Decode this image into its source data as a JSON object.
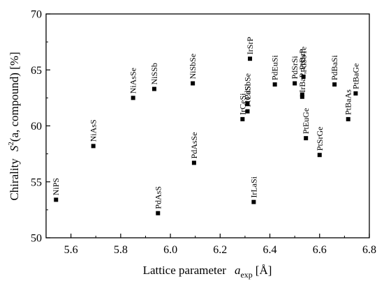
{
  "chart_data": {
    "type": "scatter",
    "title": "",
    "xlabel": {
      "prefix": "Lattice parameter",
      "symbol": "a",
      "subscript": "exp",
      "unit": "[Å]"
    },
    "ylabel": {
      "prefix": "Chirality",
      "symbol": "S",
      "superscript": "2",
      "args": "(a, compound) [%]"
    },
    "xlim": [
      5.5,
      6.8
    ],
    "ylim": [
      50,
      70
    ],
    "xticks": [
      "5.6",
      "5.8",
      "6.0",
      "6.2",
      "6.4",
      "6.6",
      "6.8"
    ],
    "yticks": [
      "50",
      "55",
      "60",
      "65",
      "70"
    ],
    "grid": false,
    "marker": "filled-square",
    "color": "#000000",
    "points": [
      {
        "x": 5.54,
        "y": 53.4
      },
      {
        "x": 5.69,
        "y": 58.2
      },
      {
        "x": 5.85,
        "y": 62.5
      },
      {
        "x": 5.935,
        "y": 63.3
      },
      {
        "x": 5.95,
        "y": 52.2
      },
      {
        "x": 6.09,
        "y": 63.8
      },
      {
        "x": 6.095,
        "y": 56.7
      },
      {
        "x": 6.29,
        "y": 60.6
      },
      {
        "x": 6.31,
        "y": 62.0
      },
      {
        "x": 6.31,
        "y": 61.3
      },
      {
        "x": 6.32,
        "y": 66.0
      },
      {
        "x": 6.335,
        "y": 53.2
      },
      {
        "x": 6.42,
        "y": 63.7
      },
      {
        "x": 6.5,
        "y": 63.8
      },
      {
        "x": 6.53,
        "y": 62.8
      },
      {
        "x": 6.53,
        "y": 62.6
      },
      {
        "x": 6.535,
        "y": 64.4
      },
      {
        "x": 6.545,
        "y": 58.9
      },
      {
        "x": 6.6,
        "y": 57.4
      },
      {
        "x": 6.66,
        "y": 63.7
      },
      {
        "x": 6.715,
        "y": 60.6
      },
      {
        "x": 6.745,
        "y": 62.9
      }
    ],
    "labels": [
      {
        "text": "NiPS",
        "x": 5.54,
        "y": 53.4
      },
      {
        "text": "NiAsS",
        "x": 5.69,
        "y": 58.2
      },
      {
        "text": "NiAsSe",
        "x": 5.85,
        "y": 62.5
      },
      {
        "text": "NiSSb",
        "x": 5.935,
        "y": 63.3
      },
      {
        "text": "PdAsS",
        "x": 5.95,
        "y": 52.2
      },
      {
        "text": "NiSbSe",
        "x": 6.09,
        "y": 63.8
      },
      {
        "text": "PdAsSe",
        "x": 6.095,
        "y": 56.7
      },
      {
        "text": "IrCeSi",
        "x": 6.29,
        "y": 60.6
      },
      {
        "text": "PdSbSe",
        "x": 6.31,
        "y": 62.0
      },
      {
        "text": "PtCaSi",
        "x": 6.31,
        "y": 61.3
      },
      {
        "text": "IrSrP",
        "x": 6.32,
        "y": 66.0
      },
      {
        "text": "IrLaSi",
        "x": 6.335,
        "y": 53.2
      },
      {
        "text": "PdEuSi",
        "x": 6.42,
        "y": 63.7
      },
      {
        "text": "PdSrSi",
        "x": 6.5,
        "y": 63.8
      },
      {
        "text": "PdSbTe",
        "x": 6.535,
        "y": 64.4
      },
      {
        "text": "IrBaP, PtBaP",
        "x": 6.53,
        "y": 62.6
      },
      {
        "text": "PtEuGe",
        "x": 6.545,
        "y": 58.9
      },
      {
        "text": "PtSrGe",
        "x": 6.6,
        "y": 57.4
      },
      {
        "text": "PdBaSi",
        "x": 6.66,
        "y": 63.7
      },
      {
        "text": "PtBaAs",
        "x": 6.715,
        "y": 60.6
      },
      {
        "text": "PtBaGe",
        "x": 6.745,
        "y": 62.9
      }
    ]
  }
}
